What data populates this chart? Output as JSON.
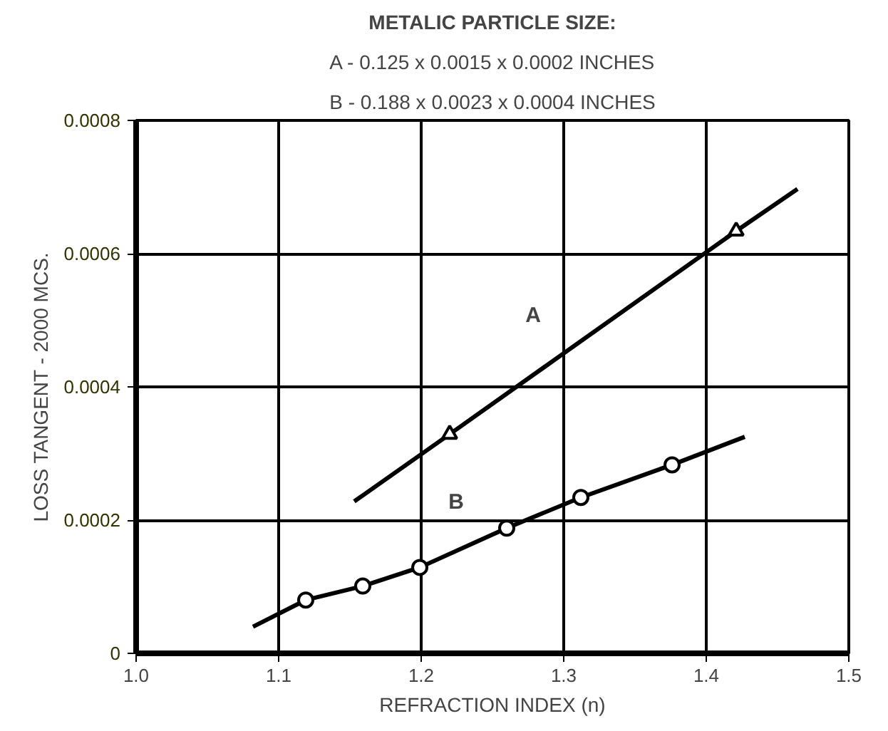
{
  "chart_data": {
    "type": "line",
    "title": "METALIC PARTICLE SIZE:",
    "xlabel": "REFRACTION INDEX (n)",
    "ylabel": "LOSS TANGENT - 2000 MCS.",
    "xlim": [
      1.0,
      1.5
    ],
    "ylim": [
      0,
      0.0008
    ],
    "xticks": [
      {
        "value": 1.0,
        "label": "1.0"
      },
      1.1,
      1.2,
      1.3,
      1.4,
      1.5
    ],
    "yticks": [
      0,
      0.0002,
      0.0004,
      0.0006,
      0.0008
    ],
    "grid": true,
    "series": [
      {
        "name": "A",
        "marker": "none",
        "color": "#000000",
        "x": [
          1.153,
          1.22,
          1.421,
          1.464
        ],
        "values": [
          0.000228,
          0.000329,
          0.000634,
          0.000697
        ]
      },
      {
        "type": "scatter",
        "marker": "triangle",
        "color": "#000000",
        "x": [
          1.22,
          1.421
        ],
        "values": [
          0.000329,
          0.000634
        ]
      },
      {
        "name": "B",
        "marker": "none",
        "color": "#000000",
        "x": [
          1.082,
          1.119,
          1.159,
          1.199,
          1.26,
          1.312,
          1.376,
          1.427
        ],
        "values": [
          4e-05,
          8e-05,
          0.000101,
          0.000129,
          0.000188,
          0.000234,
          0.000283,
          0.000325
        ]
      },
      {
        "type": "scatter",
        "marker": "circle",
        "color": "#000000",
        "x": [
          1.119,
          1.159,
          1.199,
          1.26,
          1.312,
          1.376
        ],
        "values": [
          8e-05,
          0.000101,
          0.000129,
          0.000188,
          0.000234,
          0.000283
        ]
      }
    ],
    "annotations": [
      "A - 0.125 x 0.0015 x 0.0002 INCHES",
      "B - 0.188 x 0.0023 x 0.0004 INCHES"
    ]
  }
}
